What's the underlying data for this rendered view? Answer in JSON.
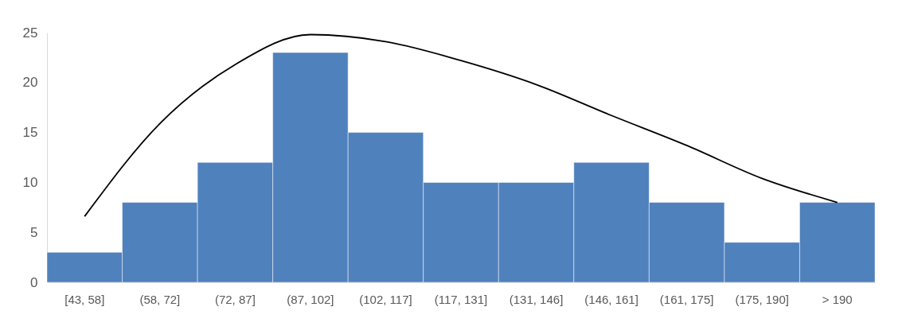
{
  "chart_data": {
    "type": "bar",
    "categories": [
      "[43, 58]",
      "(58, 72]",
      "(72, 87]",
      "(87, 102]",
      "(102, 117]",
      "(117, 131]",
      "(131, 146]",
      "(146, 161]",
      "(161, 175]",
      "(175, 190]",
      "> 190"
    ],
    "ylim": [
      0,
      25
    ],
    "yticks": [
      0,
      5,
      10,
      15,
      20,
      25
    ],
    "grid": false,
    "series": [
      {
        "color": "#4f81bd",
        "values": [
          3,
          8,
          12,
          23,
          15,
          10,
          10,
          12,
          8,
          4,
          8
        ]
      },
      {
        "type": "line",
        "color": "#000000",
        "x": [
          "[43, 58]",
          "(58, 72]",
          "(72, 87]",
          "(87, 102]",
          "(102, 117]",
          "(117, 131]",
          "(131, 146]",
          "(146, 161]",
          "(161, 175]",
          "(175, 190]",
          "> 190"
        ],
        "values": [
          6.6,
          15.9,
          21.8,
          24.8,
          24.1,
          22.2,
          19.8,
          16.7,
          13.7,
          10.4,
          8.0
        ]
      }
    ]
  }
}
